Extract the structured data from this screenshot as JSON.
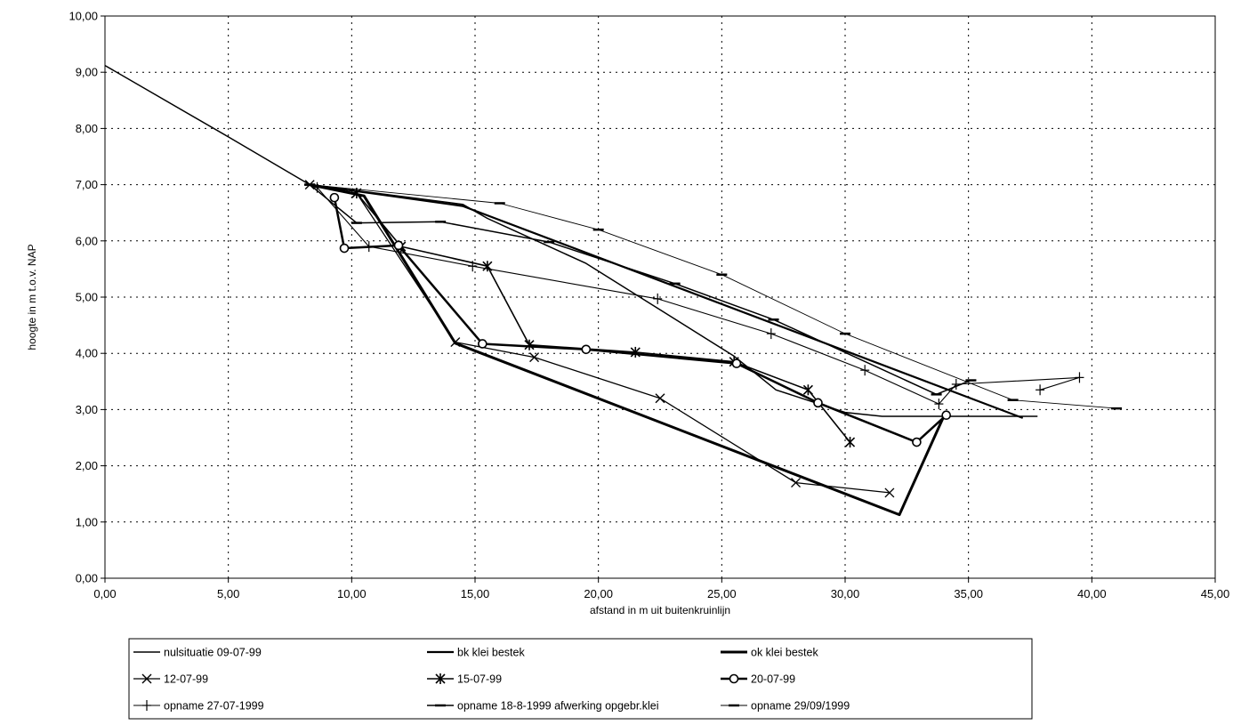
{
  "chart_data": {
    "type": "line",
    "title": "",
    "xlabel": "afstand in m uit buitenkruinlijn",
    "ylabel": "hoogte in m t.o.v. NAP",
    "xlim": [
      0,
      45
    ],
    "ylim": [
      0,
      10
    ],
    "x_ticks": [
      "0,00",
      "5,00",
      "10,00",
      "15,00",
      "20,00",
      "25,00",
      "30,00",
      "35,00",
      "40,00",
      "45,00"
    ],
    "y_ticks": [
      "0,00",
      "1,00",
      "2,00",
      "3,00",
      "4,00",
      "5,00",
      "6,00",
      "7,00",
      "8,00",
      "9,00",
      "10,00"
    ],
    "grid": true,
    "legend_position": "bottom",
    "series": [
      {
        "name": "nulsituatie 09-07-99",
        "marker": "none",
        "width": 1.5,
        "points": [
          [
            0,
            9.12
          ],
          [
            5,
            7.85
          ],
          [
            8.3,
            7.0
          ],
          [
            14.5,
            6.65
          ],
          [
            15.5,
            6.4
          ],
          [
            19.5,
            5.6
          ],
          [
            25.5,
            3.95
          ],
          [
            27.2,
            3.35
          ],
          [
            30,
            2.95
          ],
          [
            31.5,
            2.88
          ],
          [
            37.8,
            2.88
          ]
        ]
      },
      {
        "name": "bk klei bestek",
        "marker": "none",
        "width": 2.2,
        "points": [
          [
            8.3,
            7.0
          ],
          [
            14.5,
            6.62
          ],
          [
            37.2,
            2.85
          ]
        ]
      },
      {
        "name": "ok klei bestek",
        "marker": "none",
        "width": 3,
        "points": [
          [
            8.3,
            7.0
          ],
          [
            10.5,
            6.8
          ],
          [
            14.2,
            4.18
          ],
          [
            32.2,
            1.13
          ],
          [
            34,
            2.88
          ]
        ]
      },
      {
        "name": "12-07-99",
        "marker": "x",
        "width": 1.3,
        "points": [
          [
            8.3,
            7.0
          ],
          [
            10.2,
            6.85
          ],
          [
            14.2,
            4.2
          ],
          [
            17.4,
            3.93
          ],
          [
            22.5,
            3.2
          ],
          [
            28,
            1.7
          ],
          [
            31.8,
            1.52
          ]
        ]
      },
      {
        "name": "15-07-99",
        "marker": "star",
        "width": 1.6,
        "points": [
          [
            10.2,
            6.85
          ],
          [
            12,
            5.9
          ],
          [
            15.5,
            5.55
          ],
          [
            17.2,
            4.15
          ],
          [
            21.5,
            4.02
          ],
          [
            25.5,
            3.85
          ],
          [
            28.5,
            3.35
          ],
          [
            30.2,
            2.42
          ]
        ]
      },
      {
        "name": "20-07-99",
        "marker": "circle",
        "width": 2.5,
        "points": [
          [
            9.3,
            6.77
          ],
          [
            9.7,
            5.87
          ],
          [
            11.9,
            5.92
          ],
          [
            15.3,
            4.17
          ],
          [
            19.5,
            4.07
          ],
          [
            25.6,
            3.82
          ],
          [
            28.9,
            3.12
          ],
          [
            32.9,
            2.42
          ],
          [
            34.1,
            2.9
          ]
        ]
      },
      {
        "name": "opname 27-07-1999",
        "marker": "plus",
        "width": 1.1,
        "points": [
          [
            8.6,
            6.95
          ],
          [
            10.7,
            5.9
          ],
          [
            14.9,
            5.55
          ],
          [
            22.4,
            4.97
          ],
          [
            27,
            4.35
          ],
          [
            30.8,
            3.7
          ],
          [
            33.8,
            3.1
          ],
          [
            34.5,
            3.45
          ],
          [
            39.5,
            3.57
          ],
          [
            37.9,
            3.35
          ]
        ]
      },
      {
        "name": "opname 18-8-1999 afwerking opgebr.klei",
        "marker": "dash",
        "width": 1.5,
        "points": [
          [
            8.3,
            7.0
          ],
          [
            10.2,
            6.32
          ],
          [
            13.6,
            6.34
          ],
          [
            18,
            5.98
          ],
          [
            23.1,
            5.24
          ],
          [
            27.1,
            4.6
          ],
          [
            33.7,
            3.27
          ],
          [
            35.1,
            3.52
          ]
        ]
      },
      {
        "name": "opname 29/09/1999",
        "marker": "dash",
        "width": 0.9,
        "points": [
          [
            8.3,
            7.0
          ],
          [
            16,
            6.67
          ],
          [
            20,
            6.2
          ],
          [
            25,
            5.4
          ],
          [
            30,
            4.35
          ],
          [
            36.8,
            3.17
          ],
          [
            41,
            3.02
          ]
        ]
      }
    ]
  }
}
